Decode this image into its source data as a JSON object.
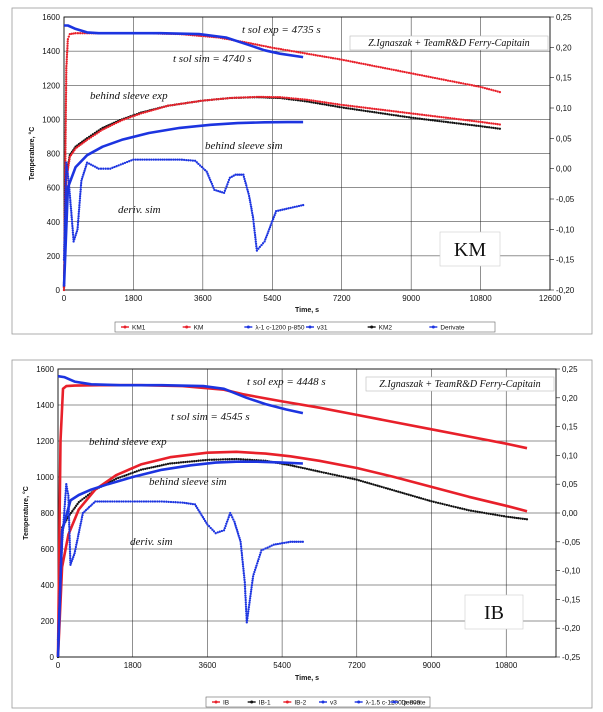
{
  "chart_data": [
    {
      "type": "line",
      "tag": "KM",
      "credit": "Z.Ignaszak + TeamR&D Ferry-Capitain",
      "xlabel": "Time, s",
      "ylabel": "Temperature, °C",
      "xlim": [
        0,
        12600
      ],
      "ylim": [
        0,
        1600
      ],
      "y2lim": [
        -0.2,
        0.25
      ],
      "xticks": [
        "0",
        "1800",
        "3600",
        "5400",
        "7200",
        "9000",
        "10800",
        "12600"
      ],
      "yticks": [
        "0",
        "200",
        "400",
        "600",
        "800",
        "1000",
        "1200",
        "1400",
        "1600"
      ],
      "y2ticks": [
        "-0,20",
        "-0,15",
        "-0,10",
        "-0,05",
        "0,00",
        "0,05",
        "0,10",
        "0,15",
        "0,20",
        "0,25"
      ],
      "annotations": [
        "t sol exp = 4735 s",
        "t sol sim = 4740 s",
        "behind sleeve exp",
        "behind sleeve sim",
        "deriv. sim"
      ],
      "legend": [
        "KM1",
        "KM",
        "λ-1 c-1200 p-850",
        "v31",
        "KM2",
        "Derivate"
      ],
      "series": [
        {
          "name": "KM",
          "color": "#e8202a",
          "style": "dots",
          "axis": "y",
          "x": [
            0,
            60,
            100,
            150,
            300,
            600,
            1200,
            2000,
            3000,
            4000,
            4735,
            5400,
            6300,
            7200,
            8100,
            9000,
            9900,
            10800,
            11300
          ],
          "y": [
            20,
            1300,
            1470,
            1500,
            1505,
            1505,
            1505,
            1505,
            1500,
            1480,
            1450,
            1420,
            1385,
            1350,
            1310,
            1270,
            1230,
            1190,
            1160
          ]
        },
        {
          "name": "λ-1 c-1200 p-850",
          "color": "#1c34e0",
          "style": "line",
          "axis": "y",
          "x": [
            0,
            100,
            300,
            600,
            900,
            1500,
            2500,
            3500,
            4200,
            4740,
            5200,
            5600,
            6200
          ],
          "y": [
            1550,
            1550,
            1530,
            1510,
            1505,
            1505,
            1505,
            1500,
            1480,
            1440,
            1405,
            1385,
            1365
          ]
        },
        {
          "name": "KM2",
          "color": "#111111",
          "style": "dots",
          "axis": "y",
          "x": [
            0,
            50,
            150,
            300,
            600,
            1000,
            1500,
            2000,
            2700,
            3600,
            4300,
            5000,
            5600,
            6300,
            7200,
            8100,
            9000,
            9900,
            10800,
            11300
          ],
          "y": [
            0,
            650,
            790,
            840,
            890,
            950,
            1000,
            1040,
            1080,
            1110,
            1125,
            1130,
            1125,
            1105,
            1070,
            1040,
            1010,
            985,
            960,
            945
          ]
        },
        {
          "name": "KM1",
          "color": "#e8202a",
          "style": "dots",
          "axis": "y",
          "x": [
            0,
            60,
            150,
            300,
            600,
            1000,
            1500,
            2000,
            2700,
            3600,
            4300,
            5000,
            5600,
            6300,
            7200,
            8100,
            9000,
            9900,
            10800,
            11300
          ],
          "y": [
            0,
            640,
            780,
            830,
            880,
            940,
            995,
            1035,
            1080,
            1110,
            1125,
            1132,
            1130,
            1115,
            1085,
            1060,
            1035,
            1010,
            985,
            970
          ]
        },
        {
          "name": "v31",
          "color": "#1c34e0",
          "style": "line",
          "axis": "y",
          "x": [
            0,
            100,
            300,
            600,
            1000,
            1500,
            2200,
            3000,
            3800,
            4500,
            5200,
            5800,
            6200
          ],
          "y": [
            20,
            600,
            720,
            790,
            840,
            880,
            920,
            950,
            968,
            978,
            983,
            984,
            984
          ]
        },
        {
          "name": "Derivate",
          "color": "#1c34e0",
          "style": "dots",
          "axis": "y2",
          "x": [
            0,
            60,
            120,
            200,
            250,
            350,
            450,
            600,
            900,
            1200,
            1800,
            2500,
            3000,
            3400,
            3700,
            3900,
            4150,
            4300,
            4450,
            4650,
            4800,
            4900,
            5000,
            5200,
            5500,
            6200
          ],
          "y": [
            -0.15,
            0.01,
            -0.02,
            -0.08,
            -0.12,
            -0.1,
            -0.02,
            0.01,
            0.0,
            0.0,
            0.015,
            0.015,
            0.015,
            0.013,
            -0.005,
            -0.035,
            -0.04,
            -0.015,
            -0.01,
            -0.01,
            -0.045,
            -0.08,
            -0.135,
            -0.12,
            -0.07,
            -0.06
          ]
        }
      ]
    },
    {
      "type": "line",
      "tag": "IB",
      "credit": "Z.Ignaszak + TeamR&D Ferry-Capitain",
      "xlabel": "Time, s",
      "ylabel": "Temperature, °C",
      "xlim": [
        0,
        12000
      ],
      "ylim": [
        0,
        1600
      ],
      "y2lim": [
        -0.25,
        0.25
      ],
      "xticks": [
        "0",
        "1800",
        "3600",
        "5400",
        "7200",
        "9000",
        "10800"
      ],
      "yticks": [
        "0",
        "200",
        "400",
        "600",
        "800",
        "1000",
        "1200",
        "1400",
        "1600"
      ],
      "y2ticks": [
        "-0,25",
        "-0,20",
        "-0,15",
        "-0,10",
        "-0,05",
        "0,00",
        "0,05",
        "0,10",
        "0,15",
        "0,20",
        "0,25"
      ],
      "annotations": [
        "t sol exp = 4448 s",
        "t sol sim = 4545 s",
        "behind sleeve exp",
        "behind sleeve sim",
        "deriv. sim"
      ],
      "legend": [
        "IB",
        "IB-1",
        "IB-2",
        "v3",
        "λ-1.5 c-1200 p-800",
        "Derivate"
      ],
      "series": [
        {
          "name": "IB",
          "color": "#e8202a",
          "style": "line",
          "axis": "y",
          "x": [
            0,
            60,
            120,
            200,
            400,
            1000,
            2000,
            3000,
            4000,
            4448,
            5400,
            6300,
            7200,
            8100,
            9000,
            9900,
            10800,
            11300
          ],
          "y": [
            0,
            1200,
            1490,
            1505,
            1508,
            1510,
            1510,
            1505,
            1485,
            1460,
            1420,
            1385,
            1345,
            1305,
            1265,
            1225,
            1185,
            1160
          ]
        },
        {
          "name": "λ-1.5 c-1200 p-800",
          "color": "#1c34e0",
          "style": "line",
          "axis": "y",
          "x": [
            0,
            150,
            400,
            800,
            1500,
            2500,
            3500,
            4000,
            4545,
            5000,
            5500,
            5900
          ],
          "y": [
            1560,
            1555,
            1530,
            1515,
            1510,
            1510,
            1505,
            1490,
            1440,
            1405,
            1375,
            1355
          ]
        },
        {
          "name": "IB-1",
          "color": "#111111",
          "style": "dots",
          "axis": "y",
          "x": [
            0,
            100,
            250,
            500,
            900,
            1400,
            2000,
            2700,
            3600,
            4300,
            5000,
            5600,
            6300,
            7200,
            8100,
            9000,
            9900,
            10800,
            11300
          ],
          "y": [
            0,
            720,
            780,
            860,
            930,
            990,
            1040,
            1075,
            1095,
            1100,
            1090,
            1065,
            1030,
            985,
            925,
            865,
            815,
            780,
            765
          ]
        },
        {
          "name": "IB-2",
          "color": "#e8202a",
          "style": "line",
          "axis": "y",
          "x": [
            0,
            100,
            250,
            500,
            900,
            1400,
            2000,
            2700,
            3600,
            4300,
            5000,
            5600,
            6300,
            7200,
            8100,
            9000,
            9900,
            10800,
            11300
          ],
          "y": [
            0,
            500,
            680,
            820,
            930,
            1010,
            1070,
            1110,
            1135,
            1140,
            1130,
            1115,
            1090,
            1050,
            1000,
            945,
            890,
            840,
            810
          ]
        },
        {
          "name": "v3",
          "color": "#1c34e0",
          "style": "line",
          "axis": "y",
          "x": [
            0,
            100,
            300,
            500,
            800,
            1200,
            1800,
            2500,
            3200,
            3800,
            4300,
            4800,
            5400,
            5900
          ],
          "y": [
            0,
            700,
            870,
            900,
            930,
            960,
            1000,
            1040,
            1065,
            1080,
            1085,
            1085,
            1080,
            1075
          ]
        },
        {
          "name": "Derivate",
          "color": "#1c34e0",
          "style": "dots",
          "axis": "y2",
          "x": [
            0,
            100,
            200,
            250,
            300,
            400,
            600,
            900,
            1200,
            1800,
            2500,
            3000,
            3300,
            3600,
            3800,
            4000,
            4150,
            4250,
            4400,
            4500,
            4550,
            4700,
            4900,
            5200,
            5600,
            5900
          ],
          "y": [
            -0.22,
            -0.05,
            0.05,
            0.03,
            -0.09,
            -0.07,
            0.0,
            0.02,
            0.02,
            0.02,
            0.02,
            0.018,
            0.015,
            -0.02,
            -0.035,
            -0.03,
            0.0,
            -0.015,
            -0.05,
            -0.12,
            -0.19,
            -0.11,
            -0.065,
            -0.055,
            -0.05,
            -0.05
          ]
        }
      ]
    }
  ]
}
